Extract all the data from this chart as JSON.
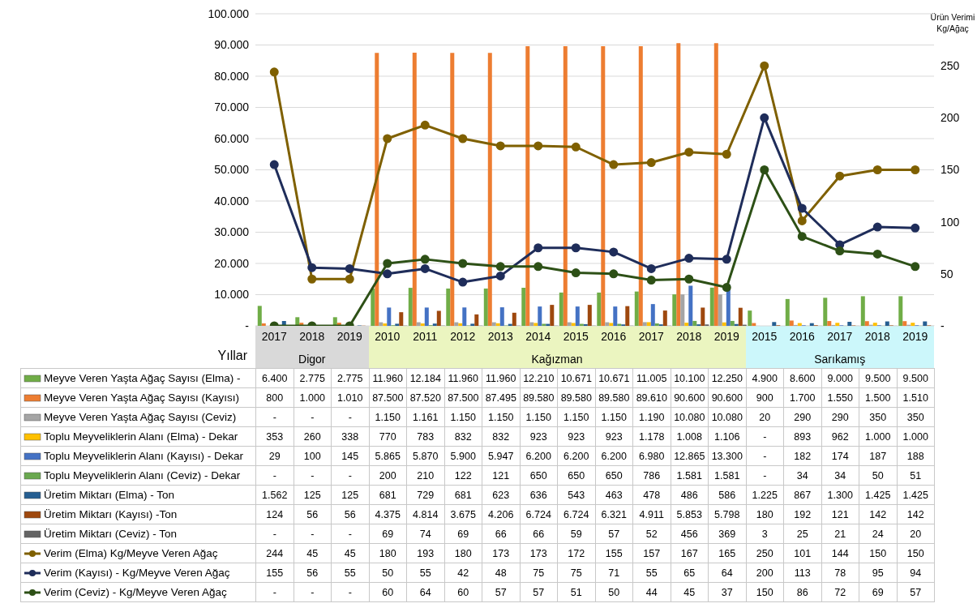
{
  "chart_data": {
    "type": "bar",
    "xlabel": "Yıllar",
    "y2label": "Ürün Verimi Kg/Ağaç",
    "annotations": [
      "Digor",
      "Kağızman",
      "Sarıkamış"
    ],
    "categories": [
      "2017",
      "2018",
      "2019",
      "2010",
      "2011",
      "2012",
      "2013",
      "2014",
      "2015",
      "2016",
      "2017",
      "2018",
      "2019",
      "2015",
      "2016",
      "2017",
      "2018",
      "2019"
    ],
    "ylim": [
      0,
      100000
    ],
    "yticks": [
      {
        "value": 0,
        "label": "-"
      },
      {
        "value": 10000,
        "label": "10.000"
      },
      {
        "value": 20000,
        "label": "20.000"
      },
      {
        "value": 30000,
        "label": "30.000"
      },
      {
        "value": 40000,
        "label": "40.000"
      },
      {
        "value": 50000,
        "label": "50.000"
      },
      {
        "value": 60000,
        "label": "60.000"
      },
      {
        "value": 70000,
        "label": "70.000"
      },
      {
        "value": 80000,
        "label": "80.000"
      },
      {
        "value": 90000,
        "label": "90.000"
      },
      {
        "value": 100000,
        "label": "100.000"
      }
    ],
    "y2lim": [
      0,
      300
    ],
    "y2ticks": [
      {
        "value": 0,
        "label": "-"
      },
      50,
      100,
      150,
      200,
      250
    ],
    "grid": "y",
    "legend": "bottom",
    "marker": "circle",
    "series": [
      {
        "name": "Meyve Veren Yaşta Ağaç Sayısı (Elma) -",
        "color": "#70ad47",
        "values": [
          6400,
          2775,
          2775,
          11960,
          12184,
          11960,
          11960,
          12210,
          10671,
          10671,
          11005,
          10100,
          12250,
          4900,
          8600,
          9000,
          9500,
          9500
        ],
        "value_labels": [
          "6.400",
          "2.775",
          "2.775",
          "11.960",
          "12.184",
          "11.960",
          "11.960",
          "12.210",
          "10.671",
          "10.671",
          "11.005",
          "10.100",
          "12.250",
          "4.900",
          "8.600",
          "9.000",
          "9.500",
          "9.500"
        ]
      },
      {
        "name": "Meyve Veren Yaşta Ağaç Sayısı (Kayısı)",
        "color": "#ed7d31",
        "values": [
          800,
          1000,
          1010,
          87500,
          87520,
          87500,
          87495,
          89580,
          89580,
          89580,
          89610,
          90600,
          90600,
          900,
          1700,
          1550,
          1500,
          1510
        ],
        "value_labels": [
          "800",
          "1.000",
          "1.010",
          "87.500",
          "87.520",
          "87.500",
          "87.495",
          "89.580",
          "89.580",
          "89.580",
          "89.610",
          "90.600",
          "90.600",
          "900",
          "1.700",
          "1.550",
          "1.500",
          "1.510"
        ]
      },
      {
        "name": "Meyve Veren Yaşta Ağaç Sayısı (Ceviz)",
        "color": "#a5a5a5",
        "values": [
          0,
          0,
          0,
          1150,
          1161,
          1150,
          1150,
          1150,
          1150,
          1150,
          1190,
          10080,
          10080,
          20,
          290,
          290,
          350,
          350
        ],
        "value_labels": [
          "-",
          "-",
          "-",
          "1.150",
          "1.161",
          "1.150",
          "1.150",
          "1.150",
          "1.150",
          "1.150",
          "1.190",
          "10.080",
          "10.080",
          "20",
          "290",
          "290",
          "350",
          "350"
        ]
      },
      {
        "name": "Toplu Meyveliklerin Alanı (Elma) - Dekar",
        "color": "#ffc000",
        "values": [
          353,
          260,
          338,
          770,
          783,
          832,
          832,
          923,
          923,
          923,
          1178,
          1008,
          1106,
          0,
          893,
          962,
          1000,
          1000
        ],
        "value_labels": [
          "353",
          "260",
          "338",
          "770",
          "783",
          "832",
          "832",
          "923",
          "923",
          "923",
          "1.178",
          "1.008",
          "1.106",
          "-",
          "893",
          "962",
          "1.000",
          "1.000"
        ]
      },
      {
        "name": "Toplu Meyveliklerin Alanı (Kayısı) - Dekar",
        "color": "#4472c4",
        "values": [
          29,
          100,
          145,
          5865,
          5870,
          5900,
          5947,
          6200,
          6200,
          6200,
          6980,
          12865,
          13300,
          0,
          182,
          174,
          187,
          188
        ],
        "value_labels": [
          "29",
          "100",
          "145",
          "5.865",
          "5.870",
          "5.900",
          "5.947",
          "6.200",
          "6.200",
          "6.200",
          "6.980",
          "12.865",
          "13.300",
          "-",
          "182",
          "174",
          "187",
          "188"
        ]
      },
      {
        "name": "Toplu Meyveliklerin Alanı (Ceviz) - Dekar",
        "color": "#6aa84f",
        "values": [
          0,
          0,
          0,
          200,
          210,
          122,
          121,
          650,
          650,
          650,
          786,
          1581,
          1581,
          0,
          34,
          34,
          50,
          51
        ],
        "value_labels": [
          "-",
          "-",
          "-",
          "200",
          "210",
          "122",
          "121",
          "650",
          "650",
          "650",
          "786",
          "1.581",
          "1.581",
          "-",
          "34",
          "34",
          "50",
          "51"
        ]
      },
      {
        "name": "Üretim Miktarı (Elma) - Ton",
        "color": "#255e91",
        "values": [
          1562,
          125,
          125,
          681,
          729,
          681,
          623,
          636,
          543,
          463,
          478,
          486,
          586,
          1225,
          867,
          1300,
          1425,
          1425
        ],
        "value_labels": [
          "1.562",
          "125",
          "125",
          "681",
          "729",
          "681",
          "623",
          "636",
          "543",
          "463",
          "478",
          "486",
          "586",
          "1.225",
          "867",
          "1.300",
          "1.425",
          "1.425"
        ]
      },
      {
        "name": "Üretim Miktarı (Kayısı) -Ton",
        "color": "#9e480e",
        "values": [
          124,
          56,
          56,
          4375,
          4814,
          3675,
          4206,
          6724,
          6724,
          6321,
          4911,
          5853,
          5798,
          180,
          192,
          121,
          142,
          142
        ],
        "value_labels": [
          "124",
          "56",
          "56",
          "4.375",
          "4.814",
          "3.675",
          "4.206",
          "6.724",
          "6.724",
          "6.321",
          "4.911",
          "5.853",
          "5.798",
          "180",
          "192",
          "121",
          "142",
          "142"
        ]
      },
      {
        "name": "Üretim Miktarı (Ceviz) - Ton",
        "color": "#636363",
        "values": [
          0,
          0,
          0,
          69,
          74,
          69,
          66,
          66,
          59,
          57,
          52,
          456,
          369,
          3,
          25,
          21,
          24,
          20
        ],
        "value_labels": [
          "-",
          "-",
          "-",
          "69",
          "74",
          "69",
          "66",
          "66",
          "59",
          "57",
          "52",
          "456",
          "369",
          "3",
          "25",
          "21",
          "24",
          "20"
        ]
      },
      {
        "name": "Verim (Elma) Kg/Meyve Veren Ağaç",
        "type": "line",
        "axis": "y2",
        "color": "#7f6000",
        "values": [
          244,
          45,
          45,
          180,
          193,
          180,
          173,
          173,
          172,
          155,
          157,
          167,
          165,
          250,
          101,
          144,
          150,
          150
        ],
        "value_labels": [
          "244",
          "45",
          "45",
          "180",
          "193",
          "180",
          "173",
          "173",
          "172",
          "155",
          "157",
          "167",
          "165",
          "250",
          "101",
          "144",
          "150",
          "150"
        ]
      },
      {
        "name": "Verim (Kayısı) - Kg/Meyve Veren Ağaç",
        "type": "line",
        "axis": "y2",
        "color": "#1f2d5a",
        "values": [
          155,
          56,
          55,
          50,
          55,
          42,
          48,
          75,
          75,
          71,
          55,
          65,
          64,
          200,
          113,
          78,
          95,
          94
        ],
        "value_labels": [
          "155",
          "56",
          "55",
          "50",
          "55",
          "42",
          "48",
          "75",
          "75",
          "71",
          "55",
          "65",
          "64",
          "200",
          "113",
          "78",
          "95",
          "94"
        ]
      },
      {
        "name": "Verim (Ceviz) - Kg/Meyve Veren Ağaç",
        "type": "line",
        "axis": "y2",
        "color": "#2d5016",
        "values": [
          0,
          0,
          0,
          60,
          64,
          60,
          57,
          57,
          51,
          50,
          44,
          45,
          37,
          150,
          86,
          72,
          69,
          57
        ],
        "value_labels": [
          "-",
          "-",
          "-",
          "60",
          "64",
          "60",
          "57",
          "57",
          "51",
          "50",
          "44",
          "45",
          "37",
          "150",
          "86",
          "72",
          "69",
          "57"
        ]
      }
    ]
  }
}
